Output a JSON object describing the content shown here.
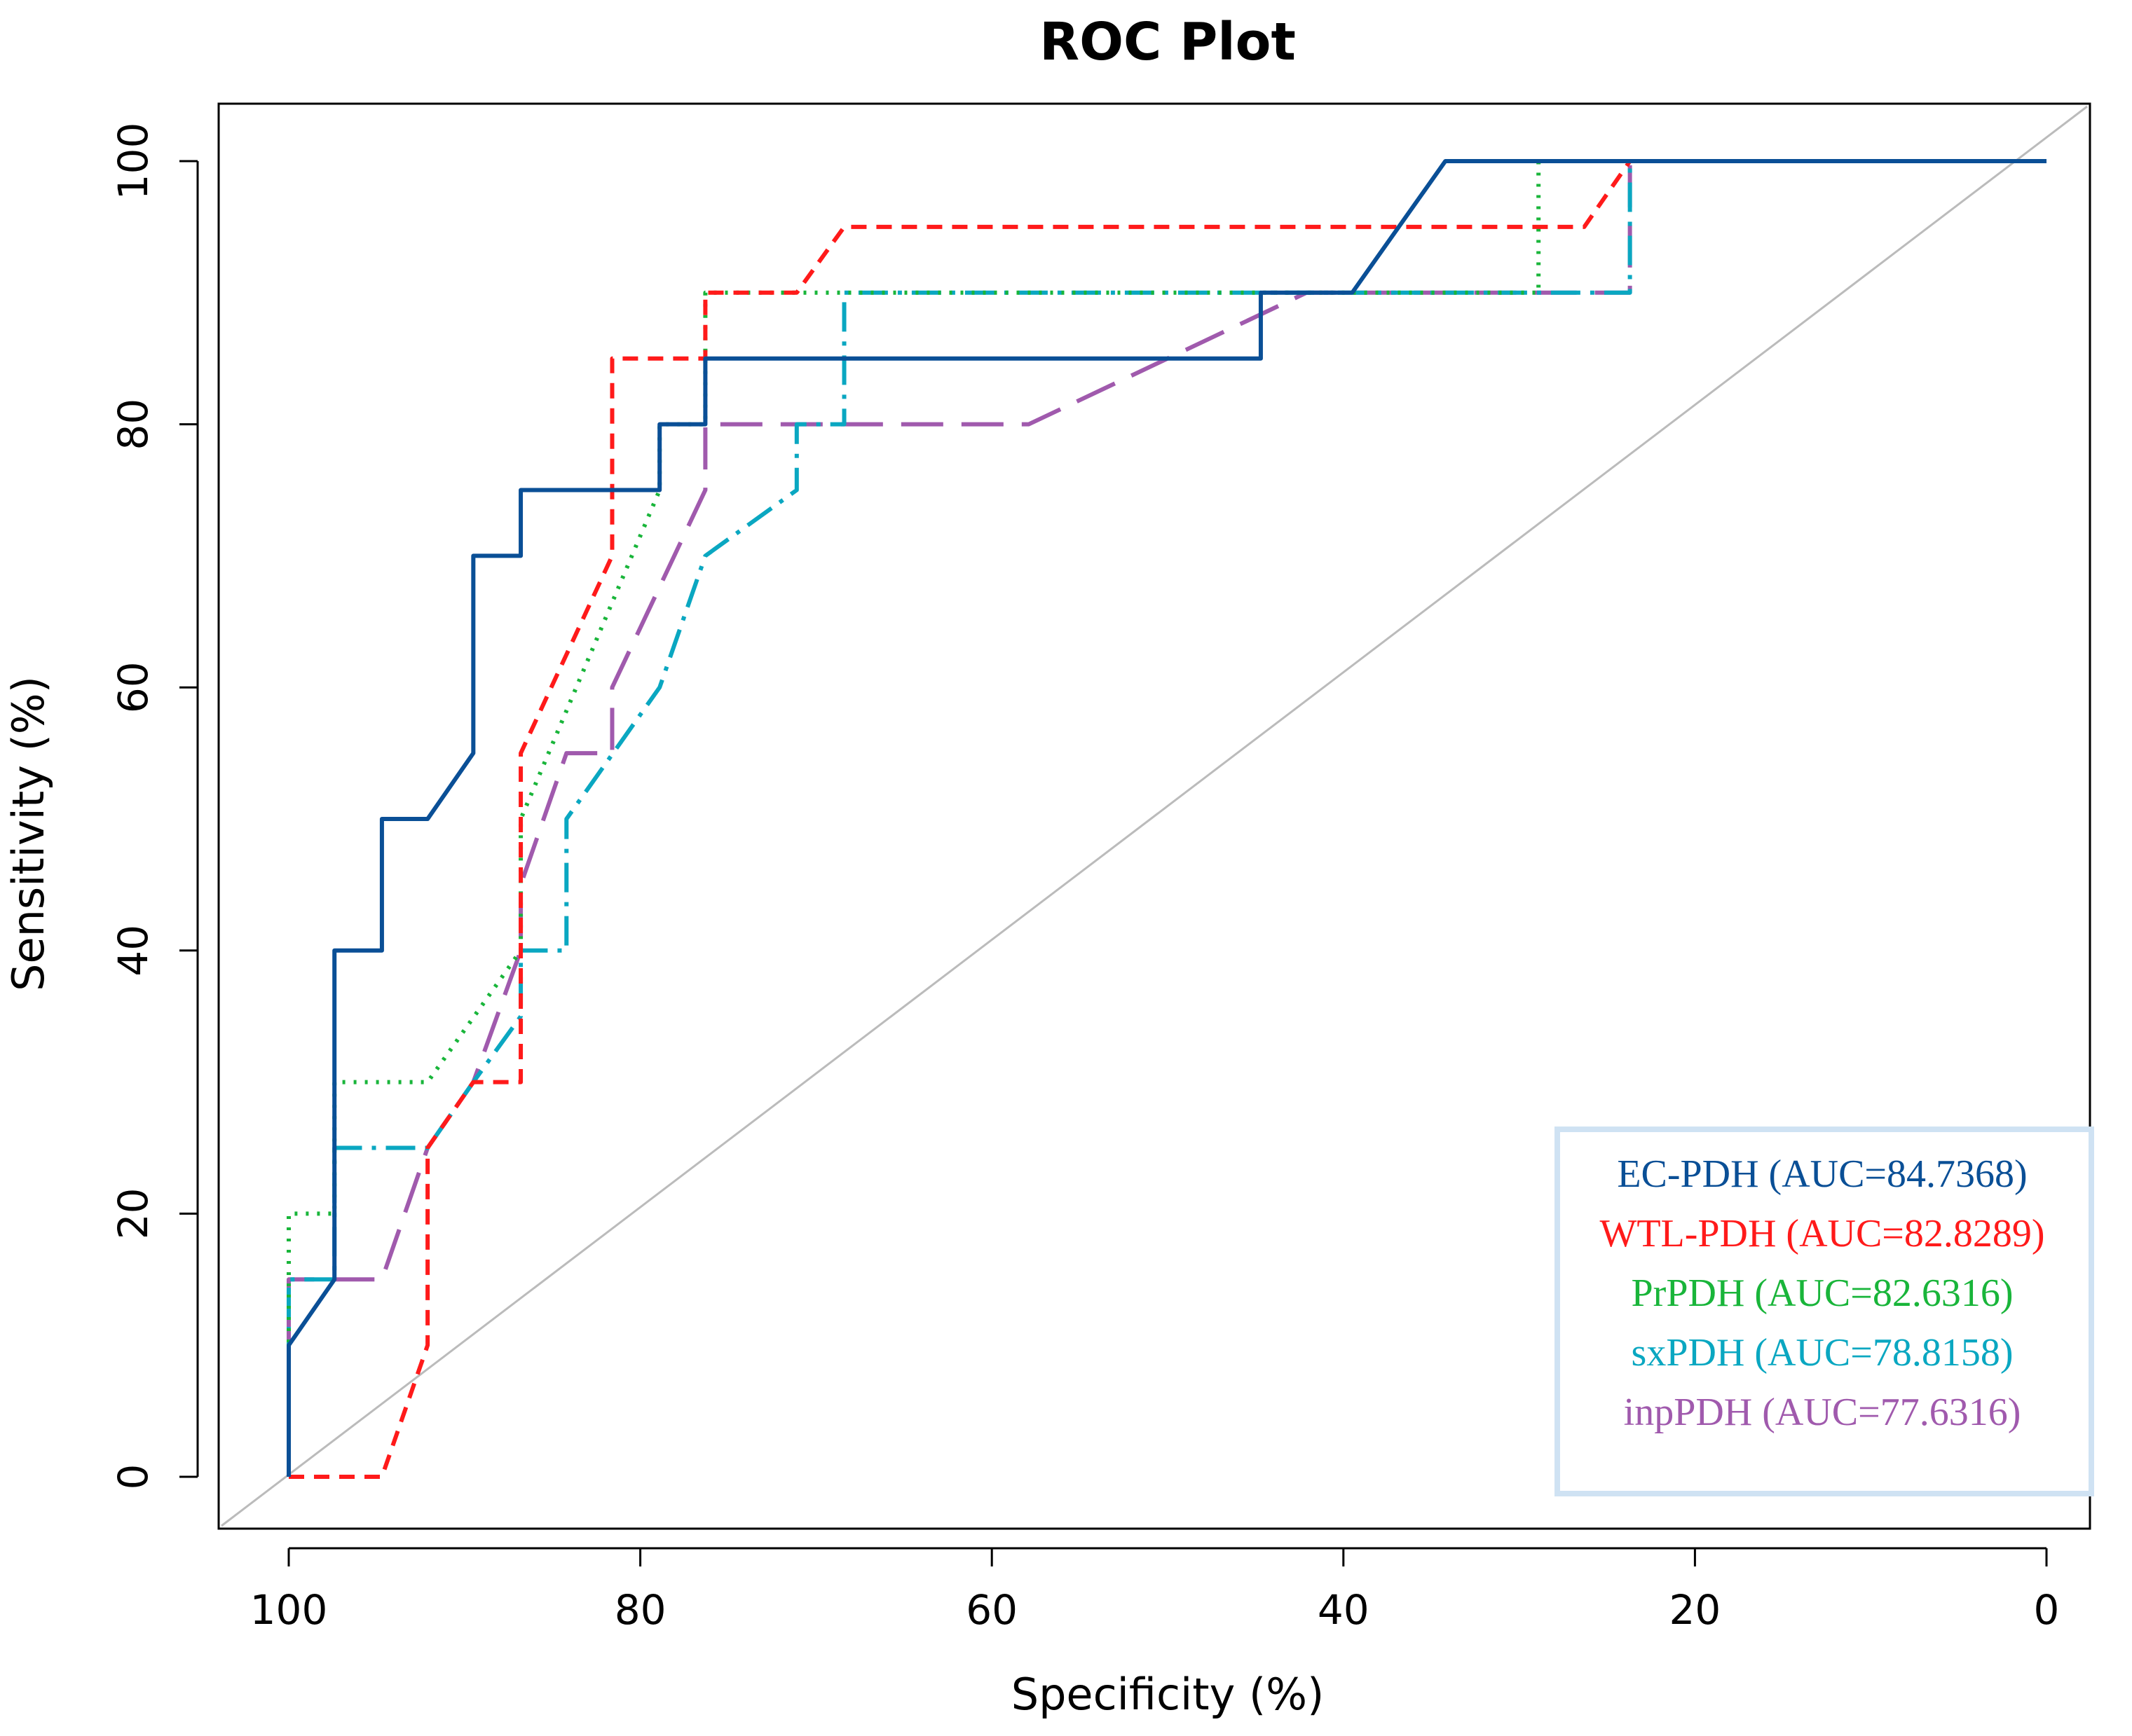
{
  "chart_data": {
    "type": "line",
    "title": "ROC Plot",
    "xlabel": "Specificity (%)",
    "ylabel": "Sensitivity (%)",
    "xlim": [
      100,
      0
    ],
    "ylim": [
      0,
      100
    ],
    "x_reversed": true,
    "xticks": [
      100,
      80,
      60,
      40,
      20,
      0
    ],
    "yticks": [
      0,
      20,
      40,
      60,
      80,
      100
    ],
    "legend_position": "bottom-right",
    "reference_line": {
      "name": "chance",
      "x": [
        100,
        0
      ],
      "y": [
        0,
        100
      ],
      "color": "#bbbbbb"
    },
    "series": [
      {
        "name": "EC-PDH",
        "legend": "EC-PDH (AUC=84.7368)",
        "auc": 84.7368,
        "color": "#0a4f96",
        "dash": "solid",
        "x": [
          100,
          100,
          97.4,
          97.4,
          94.7,
          94.7,
          92.1,
          89.5,
          89.5,
          86.8,
          86.8,
          78.9,
          78.9,
          76.3,
          76.3,
          44.7,
          44.7,
          39.5,
          34.2,
          0
        ],
        "y": [
          0,
          10,
          15,
          40,
          40,
          50,
          50,
          55,
          70,
          70,
          75,
          75,
          80,
          80,
          85,
          85,
          90,
          90,
          100,
          100
        ]
      },
      {
        "name": "WTL-PDH",
        "legend": "WTL-PDH (AUC=82.8289)",
        "auc": 82.8289,
        "color": "#ff1a1a",
        "dash": "dashed",
        "x": [
          100,
          94.7,
          92.1,
          92.1,
          89.5,
          86.8,
          86.8,
          81.6,
          81.6,
          76.3,
          76.3,
          71.1,
          68.4,
          26.3,
          23.7,
          0
        ],
        "y": [
          0,
          0,
          10,
          25,
          30,
          30,
          55,
          70,
          85,
          85,
          90,
          90,
          95,
          95,
          100,
          100
        ]
      },
      {
        "name": "PrPDH",
        "legend": "PrPDH (AUC=82.6316)",
        "auc": 82.6316,
        "color": "#19b53a",
        "dash": "dotted",
        "x": [
          100,
          100,
          97.4,
          97.4,
          92.1,
          86.8,
          86.8,
          78.9,
          78.9,
          76.3,
          76.3,
          28.9,
          28.9,
          0
        ],
        "y": [
          0,
          20,
          20,
          30,
          30,
          40,
          50,
          75,
          80,
          80,
          90,
          90,
          100,
          100
        ]
      },
      {
        "name": "sxPDH",
        "legend": "sxPDH (AUC=78.8158)",
        "auc": 78.8158,
        "color": "#0aa7c1",
        "dash": "dashdot",
        "x": [
          100,
          100,
          97.4,
          97.4,
          92.1,
          89.5,
          86.8,
          86.8,
          84.2,
          84.2,
          78.9,
          76.3,
          71.1,
          71.1,
          68.4,
          68.4,
          23.7,
          23.7,
          0
        ],
        "y": [
          0,
          15,
          15,
          25,
          25,
          30,
          35,
          40,
          40,
          50,
          60,
          70,
          75,
          80,
          80,
          90,
          90,
          100,
          100
        ]
      },
      {
        "name": "inpPDH",
        "legend": "inpPDH (AUC=77.6316)",
        "auc": 77.6316,
        "color": "#a05aad",
        "dash": "longdash",
        "x": [
          100,
          100,
          97.4,
          94.7,
          92.1,
          89.5,
          86.8,
          86.8,
          84.2,
          81.6,
          81.6,
          76.3,
          76.3,
          57.9,
          42.1,
          23.7,
          23.7,
          0
        ],
        "y": [
          0,
          15,
          15,
          15,
          25,
          30,
          40,
          45,
          55,
          55,
          60,
          75,
          80,
          80,
          90,
          90,
          100,
          100
        ]
      }
    ]
  }
}
